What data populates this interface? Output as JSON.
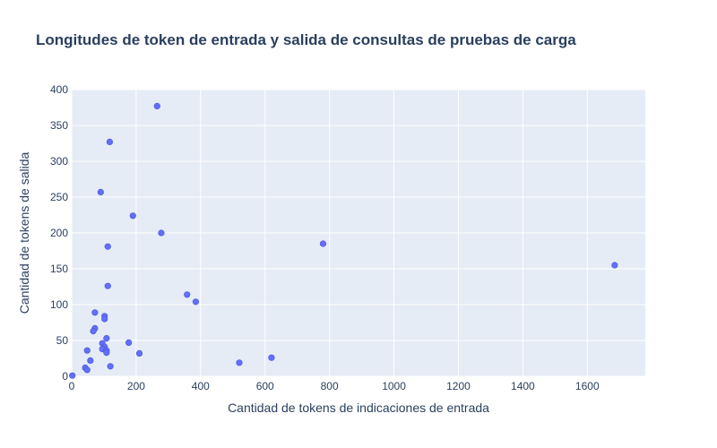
{
  "chart_data": {
    "type": "scatter",
    "title": "Longitudes de token de entrada y salida de consultas de pruebas de carga",
    "xlabel": "Cantidad de tokens de indicaciones de entrada",
    "ylabel": "Cantidad de tokens de salida",
    "xlim": [
      0,
      1780
    ],
    "ylim": [
      0,
      400
    ],
    "xticks": [
      0,
      200,
      400,
      600,
      800,
      1000,
      1200,
      1400,
      1600
    ],
    "yticks": [
      0,
      50,
      100,
      150,
      200,
      250,
      300,
      350,
      400
    ],
    "grid": true,
    "series": [
      {
        "color": "#636efa",
        "points": [
          {
            "x": 265,
            "y": 377
          },
          {
            "x": 118,
            "y": 327
          },
          {
            "x": 90,
            "y": 257
          },
          {
            "x": 190,
            "y": 224
          },
          {
            "x": 278,
            "y": 200
          },
          {
            "x": 780,
            "y": 185
          },
          {
            "x": 112,
            "y": 181
          },
          {
            "x": 1685,
            "y": 155
          },
          {
            "x": 112,
            "y": 126
          },
          {
            "x": 358,
            "y": 114
          },
          {
            "x": 385,
            "y": 104
          },
          {
            "x": 72,
            "y": 89
          },
          {
            "x": 102,
            "y": 84
          },
          {
            "x": 102,
            "y": 80
          },
          {
            "x": 72,
            "y": 67
          },
          {
            "x": 67,
            "y": 63
          },
          {
            "x": 108,
            "y": 53
          },
          {
            "x": 177,
            "y": 47
          },
          {
            "x": 95,
            "y": 46
          },
          {
            "x": 102,
            "y": 41
          },
          {
            "x": 95,
            "y": 38
          },
          {
            "x": 108,
            "y": 36
          },
          {
            "x": 48,
            "y": 36
          },
          {
            "x": 108,
            "y": 33
          },
          {
            "x": 210,
            "y": 32
          },
          {
            "x": 620,
            "y": 26
          },
          {
            "x": 58,
            "y": 22
          },
          {
            "x": 520,
            "y": 19
          },
          {
            "x": 120,
            "y": 14
          },
          {
            "x": 42,
            "y": 12
          },
          {
            "x": 48,
            "y": 9
          },
          {
            "x": 2,
            "y": 1
          }
        ]
      }
    ]
  }
}
